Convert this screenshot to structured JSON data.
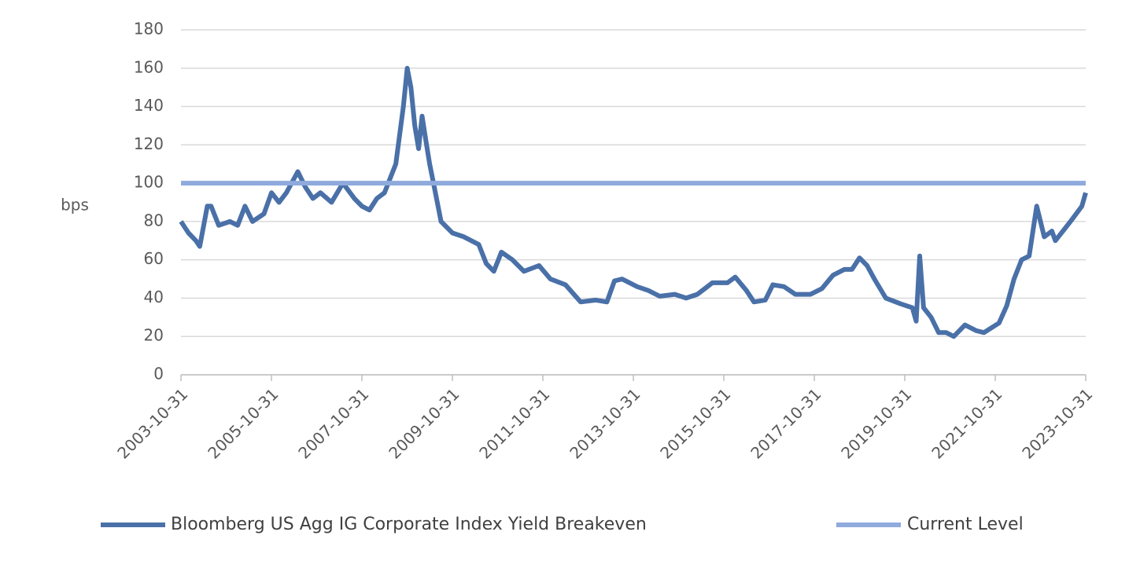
{
  "chart_data": {
    "type": "line",
    "y_label": "bps",
    "x": [
      "2003-10-31",
      "2003-12-31",
      "2004-02-29",
      "2004-03-31",
      "2004-05-31",
      "2004-06-30",
      "2004-08-31",
      "2004-11-30",
      "2005-01-31",
      "2005-03-31",
      "2005-05-31",
      "2005-08-31",
      "2005-10-31",
      "2005-12-31",
      "2006-02-28",
      "2006-05-31",
      "2006-07-31",
      "2006-09-30",
      "2006-11-30",
      "2007-02-28",
      "2007-05-31",
      "2007-08-31",
      "2007-10-31",
      "2007-12-31",
      "2008-02-29",
      "2008-04-30",
      "2008-06-30",
      "2008-07-31",
      "2008-09-30",
      "2008-10-31",
      "2008-11-30",
      "2008-12-31",
      "2009-01-31",
      "2009-02-28",
      "2009-03-31",
      "2009-04-30",
      "2009-05-31",
      "2009-07-31",
      "2009-10-31",
      "2010-01-31",
      "2010-05-31",
      "2010-07-31",
      "2010-09-30",
      "2010-11-30",
      "2011-02-28",
      "2011-05-31",
      "2011-09-30",
      "2011-12-31",
      "2012-04-30",
      "2012-08-31",
      "2012-12-31",
      "2013-03-31",
      "2013-05-31",
      "2013-07-31",
      "2013-11-30",
      "2014-02-28",
      "2014-05-31",
      "2014-09-30",
      "2014-12-31",
      "2015-03-31",
      "2015-05-31",
      "2015-07-31",
      "2015-11-30",
      "2016-01-31",
      "2016-04-30",
      "2016-06-30",
      "2016-09-30",
      "2016-11-30",
      "2017-02-28",
      "2017-05-31",
      "2017-09-30",
      "2017-12-31",
      "2018-03-31",
      "2018-06-30",
      "2018-08-31",
      "2018-10-31",
      "2018-12-31",
      "2019-02-28",
      "2019-05-31",
      "2019-09-30",
      "2019-12-31",
      "2020-01-31",
      "2020-02-29",
      "2020-03-31",
      "2020-05-31",
      "2020-07-31",
      "2020-09-30",
      "2020-11-30",
      "2021-02-28",
      "2021-05-31",
      "2021-07-31",
      "2021-11-30",
      "2022-01-31",
      "2022-03-31",
      "2022-05-31",
      "2022-07-31",
      "2022-09-30",
      "2022-11-30",
      "2023-01-31",
      "2023-02-28",
      "2023-04-30",
      "2023-06-30",
      "2023-09-30",
      "2023-10-31"
    ],
    "series": [
      {
        "name": "Bloomberg US Agg IG Corporate Index Yield Breakeven",
        "color": "#4a70a8",
        "values": [
          80,
          74,
          70,
          67,
          88,
          88,
          78,
          80,
          78,
          88,
          80,
          84,
          95,
          90,
          95,
          106,
          98,
          92,
          95,
          90,
          100,
          92,
          88,
          86,
          92,
          95,
          105,
          110,
          140,
          160,
          150,
          130,
          118,
          135,
          122,
          110,
          100,
          80,
          74,
          72,
          68,
          58,
          54,
          64,
          60,
          54,
          57,
          50,
          47,
          38,
          39,
          38,
          49,
          50,
          46,
          44,
          41,
          42,
          40,
          42,
          45,
          48,
          48,
          51,
          44,
          38,
          39,
          47,
          46,
          42,
          42,
          45,
          52,
          55,
          55,
          61,
          57,
          50,
          40,
          37,
          35,
          28,
          62,
          35,
          30,
          22,
          22,
          20,
          26,
          23,
          22,
          27,
          36,
          50,
          60,
          62,
          88,
          72,
          75,
          70,
          75,
          80,
          88,
          95
        ]
      }
    ],
    "reference_line": {
      "name": "Current Level",
      "value": 100,
      "color": "#8faadc"
    },
    "xlim": [
      "2003-10-31",
      "2023-10-31"
    ],
    "xticks": [
      "2003-10-31",
      "2005-10-31",
      "2007-10-31",
      "2009-10-31",
      "2011-10-31",
      "2013-10-31",
      "2015-10-31",
      "2017-10-31",
      "2019-10-31",
      "2021-10-31",
      "2023-10-31"
    ],
    "ylim": [
      0,
      180
    ],
    "yticks": [
      0,
      20,
      40,
      60,
      80,
      100,
      120,
      140,
      160,
      180
    ],
    "grid": true
  }
}
